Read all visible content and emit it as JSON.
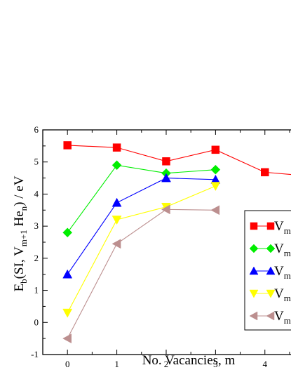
{
  "chart_data": {
    "type": "line",
    "title": "",
    "xlabel": "No. Vacancies, m",
    "ylabel_parts": {
      "main": "E",
      "sub1": "b",
      "mid": "(SI, V",
      "sub2": "m+1",
      "after": " He",
      "sub3": "n",
      "end": ") / eV"
    },
    "xlim": [
      -0.5,
      4.6
    ],
    "ylim": [
      -1,
      6
    ],
    "x_ticks": [
      "0",
      "1",
      "2",
      "3",
      "4"
    ],
    "y_ticks": [
      "-1",
      "0",
      "1",
      "2",
      "3",
      "4",
      "5",
      "6"
    ],
    "grid": false,
    "legend_position": "right",
    "series": [
      {
        "legend_text": "V",
        "legend_sub": "m",
        "color": "#ff0000",
        "marker": "square",
        "x": [
          0,
          1,
          2,
          3,
          4,
          4.6
        ],
        "y": [
          5.52,
          5.45,
          5.02,
          5.38,
          4.68,
          4.6
        ]
      },
      {
        "legend_text": "V",
        "legend_sub": "m",
        "color": "#00ee00",
        "marker": "diamond",
        "x": [
          0,
          1,
          2,
          3
        ],
        "y": [
          2.8,
          4.9,
          4.65,
          4.76
        ]
      },
      {
        "legend_text": "V",
        "legend_sub": "m",
        "color": "#0000ff",
        "marker": "triangle-up",
        "x": [
          0,
          1,
          2,
          3
        ],
        "y": [
          1.5,
          3.73,
          4.5,
          4.45
        ]
      },
      {
        "legend_text": "V",
        "legend_sub": "m",
        "color": "#ffff00",
        "marker": "triangle-down",
        "x": [
          0,
          1,
          2,
          3
        ],
        "y": [
          0.3,
          3.2,
          3.6,
          4.25
        ]
      },
      {
        "legend_text": "V",
        "legend_sub": "m",
        "color": "#bc8f8f",
        "marker": "triangle-left",
        "x": [
          0,
          1,
          2,
          3
        ],
        "y": [
          -0.5,
          2.45,
          3.52,
          3.5
        ]
      }
    ]
  }
}
